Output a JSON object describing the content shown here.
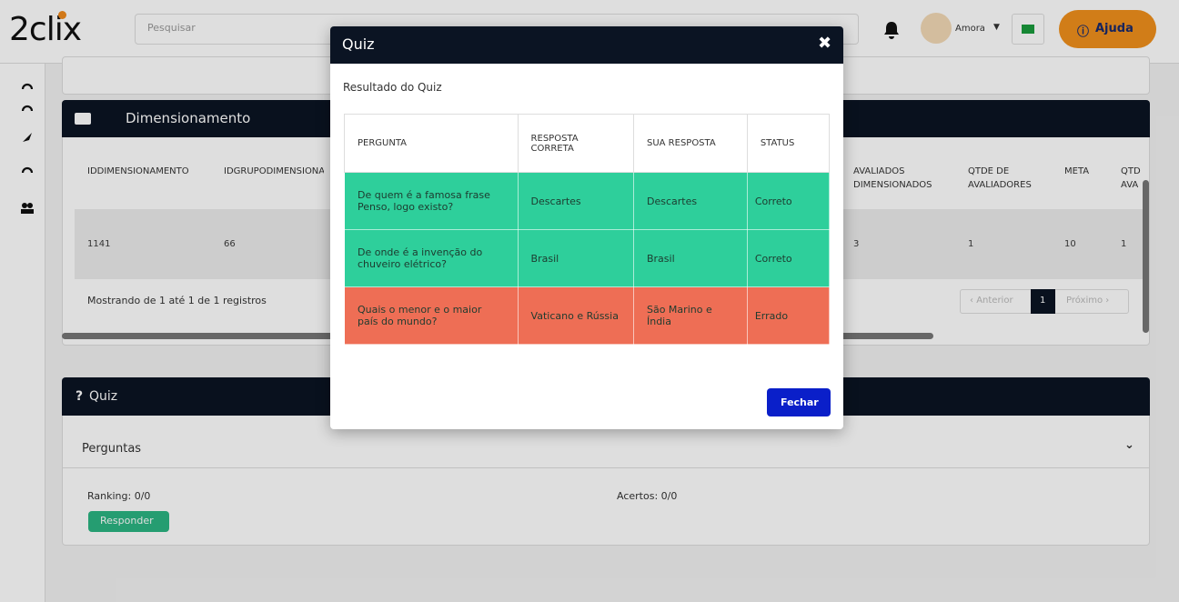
{
  "header": {
    "logo": "2clix",
    "search_placeholder": "Pesquisar",
    "user": "Amora",
    "help": "Ajuda"
  },
  "dimensionamento": {
    "title": "Dimensionamento",
    "columns": [
      "IDDIMENSIONAMENTO",
      "IDGRUPODIMENSIONA",
      "AVALIADOS DIMENSIONADOS",
      "QTDE DE AVALIADORES",
      "META",
      "QTD AVA"
    ],
    "row": [
      "1141",
      "66",
      "3",
      "1",
      "10",
      "1"
    ],
    "info": "Mostrando de 1 até 1 de 1 registros",
    "pagination": [
      "Anterior",
      "1",
      "Próximo"
    ]
  },
  "quiz_panel": {
    "title": "Quiz",
    "section": "Perguntas",
    "ranking": "Ranking: 0/0",
    "acertos": "Acertos: 0/0",
    "button": "Responder"
  },
  "modal": {
    "title": "Quiz",
    "subtitle": "Resultado do Quiz",
    "table": {
      "headers": [
        "PERGUNTA",
        "RESPOSTA CORRETA",
        "SUA RESPOSTA",
        "STATUS"
      ],
      "rows": [
        {
          "color": "#2ecf9b",
          "cells": [
            "De quem é a famosa frase Penso, logo existo?",
            "Descartes",
            "Descartes",
            "Correto"
          ]
        },
        {
          "color": "#2ecf9b",
          "cells": [
            "De onde é a invenção do chuveiro elétrico?",
            "Brasil",
            "Brasil",
            "Correto"
          ]
        },
        {
          "color": "#ee6e55",
          "cells": [
            "Quais o menor e o maior país do mundo?",
            "Vaticano e Rússia",
            "São Marino e Índia",
            "Errado"
          ]
        }
      ]
    },
    "button": "Fechar"
  }
}
